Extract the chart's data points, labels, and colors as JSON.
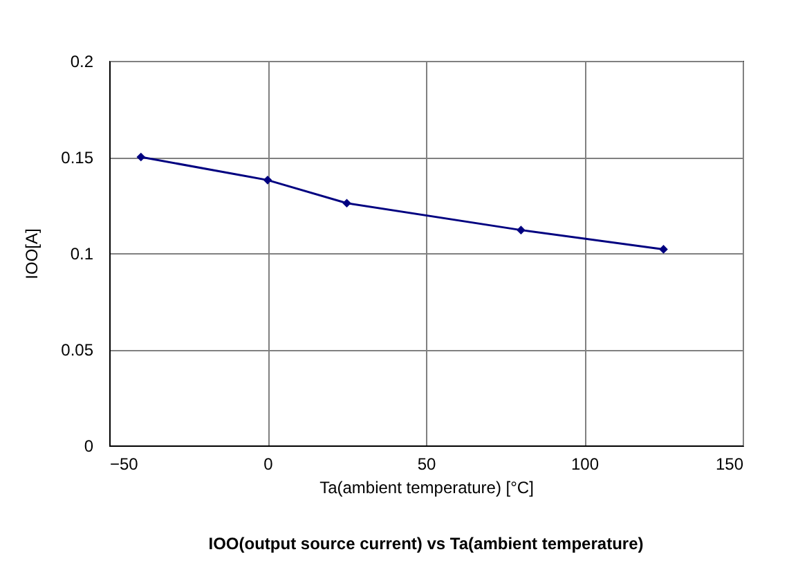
{
  "chart_data": {
    "type": "line",
    "xlabel": "Ta(ambient temperature) [°C]",
    "ylabel": "IOO[A]",
    "annotations": [
      "IOO(output source current) vs Ta(ambient temperature)"
    ],
    "x": [
      -40,
      0,
      25,
      80,
      125
    ],
    "series": [
      {
        "color": "#000080",
        "values": [
          0.15,
          0.138,
          0.126,
          0.112,
          0.102
        ]
      }
    ],
    "xlim": [
      -50,
      150
    ],
    "xticks": [
      -50,
      0,
      50,
      100,
      150
    ],
    "ylim": [
      0,
      0.2
    ],
    "yticks": [
      0,
      0.05,
      0.1,
      0.15,
      0.2
    ],
    "grid": true,
    "marker": "diamond",
    "line_style": "solid"
  }
}
